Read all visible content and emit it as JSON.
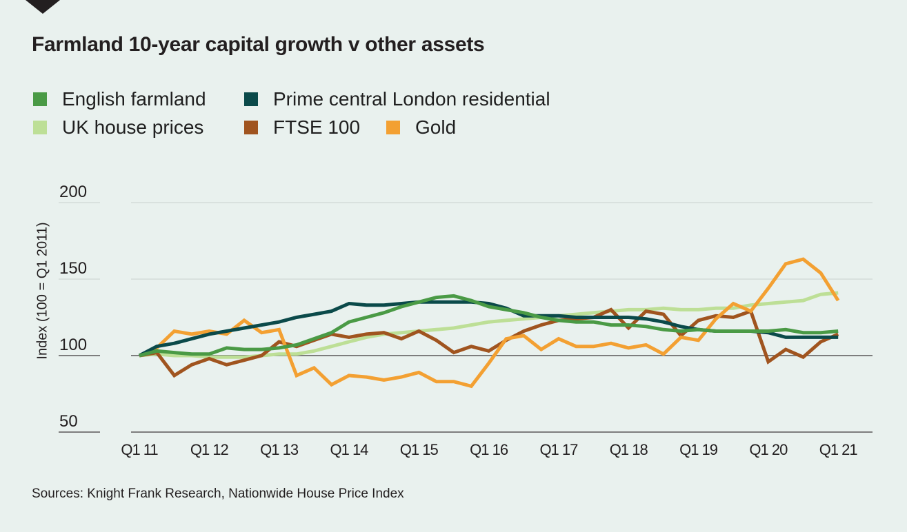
{
  "chart_data": {
    "type": "line",
    "title": "Farmland 10-year capital growth v other assets",
    "xlabel": "",
    "ylabel": "Index (100 = Q1 2011)",
    "ylim": [
      50,
      200
    ],
    "yticks": [
      200,
      150,
      100,
      50
    ],
    "xtick_labels": [
      "Q1 11",
      "Q1 12",
      "Q1 13",
      "Q1 14",
      "Q1 15",
      "Q1 16",
      "Q1 17",
      "Q1 18",
      "Q1 19",
      "Q1 20",
      "Q1 21"
    ],
    "x_quarters": 41,
    "grid": "horizontal",
    "legend_position": "top-left",
    "source": "Sources: Knight Frank Research, Nationwide House Price Index",
    "series": [
      {
        "name": "English farmland",
        "color": "#4a9a45",
        "values": [
          100,
          103,
          102,
          101,
          101,
          105,
          104,
          104,
          105,
          107,
          111,
          115,
          122,
          125,
          128,
          132,
          135,
          138,
          139,
          136,
          132,
          130,
          128,
          125,
          123,
          122,
          122,
          120,
          120,
          119,
          117,
          116,
          117,
          116,
          116,
          116,
          116,
          117,
          115,
          115,
          116
        ]
      },
      {
        "name": "Prime central London residential",
        "color": "#0b4a4a",
        "values": [
          100,
          106,
          108,
          111,
          114,
          116,
          118,
          120,
          122,
          125,
          127,
          129,
          134,
          133,
          133,
          134,
          135,
          135,
          135,
          135,
          134,
          131,
          126,
          126,
          126,
          125,
          125,
          125,
          125,
          124,
          122,
          119,
          117,
          116,
          116,
          116,
          115,
          112,
          112,
          112,
          112
        ]
      },
      {
        "name": "UK house prices",
        "color": "#bddf96",
        "values": [
          100,
          101,
          100,
          100,
          99,
          99,
          99,
          100,
          101,
          101,
          103,
          106,
          109,
          112,
          114,
          115,
          116,
          117,
          118,
          120,
          122,
          123,
          124,
          125,
          126,
          127,
          128,
          129,
          130,
          130,
          131,
          130,
          130,
          131,
          131,
          133,
          134,
          135,
          136,
          140,
          141
        ]
      },
      {
        "name": "FTSE 100",
        "color": "#a0541f",
        "values": [
          100,
          102,
          87,
          94,
          98,
          94,
          97,
          100,
          109,
          106,
          110,
          114,
          112,
          114,
          115,
          111,
          116,
          110,
          102,
          106,
          103,
          110,
          116,
          120,
          123,
          124,
          125,
          130,
          118,
          129,
          127,
          113,
          123,
          126,
          125,
          129,
          96,
          104,
          99,
          109,
          114
        ]
      },
      {
        "name": "Gold",
        "color": "#f3a032",
        "values": [
          100,
          105,
          116,
          114,
          116,
          114,
          123,
          115,
          117,
          87,
          92,
          81,
          87,
          86,
          84,
          86,
          89,
          83,
          83,
          80,
          95,
          111,
          113,
          104,
          111,
          106,
          106,
          108,
          105,
          107,
          101,
          112,
          110,
          124,
          134,
          129,
          144,
          160,
          163,
          154,
          136
        ]
      }
    ]
  }
}
